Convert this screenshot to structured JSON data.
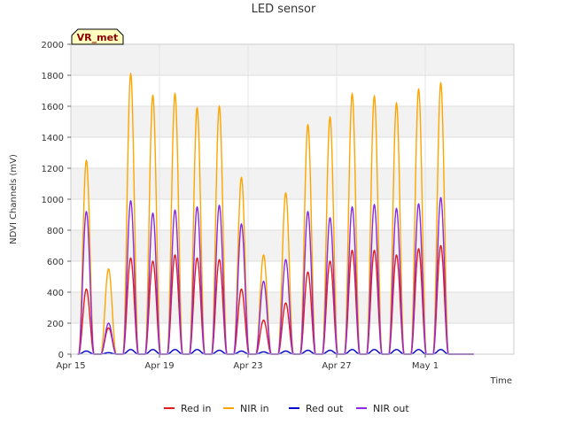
{
  "chart_data": {
    "type": "line",
    "title": "LED sensor",
    "xlabel": "Time",
    "ylabel": "NDVI Channels (mV)",
    "badge": "VR_met",
    "ylim": [
      0,
      2000
    ],
    "xlim_days": [
      15,
      35
    ],
    "yticks": [
      0,
      200,
      400,
      600,
      800,
      1000,
      1200,
      1400,
      1600,
      1800,
      2000
    ],
    "xticks": [
      {
        "day": 15,
        "label": "Apr 15"
      },
      {
        "day": 19,
        "label": "Apr 19"
      },
      {
        "day": 23,
        "label": "Apr 23"
      },
      {
        "day": 27,
        "label": "Apr 27"
      },
      {
        "day": 31,
        "label": "May 1"
      }
    ],
    "legend": "bottom-center",
    "grid": true,
    "days": [
      15.7,
      16.7,
      17.7,
      18.7,
      19.7,
      20.7,
      21.7,
      22.7,
      23.7,
      24.7,
      25.7,
      26.7,
      27.7,
      28.7,
      29.7,
      30.7,
      31.7,
      32.7
    ],
    "series": [
      {
        "name": "Red in",
        "color": "#e41a1c",
        "daily_peaks": [
          420,
          170,
          620,
          600,
          640,
          620,
          610,
          420,
          220,
          330,
          530,
          600,
          670,
          670,
          640,
          680,
          700,
          0
        ]
      },
      {
        "name": "NIR in",
        "color": "#ffa500",
        "daily_peaks": [
          1250,
          550,
          1810,
          1670,
          1680,
          1590,
          1600,
          1140,
          640,
          1040,
          1480,
          1530,
          1680,
          1665,
          1620,
          1710,
          1750,
          0
        ]
      },
      {
        "name": "Red out",
        "color": "#0000cd",
        "daily_peaks": [
          20,
          10,
          30,
          30,
          30,
          30,
          25,
          20,
          15,
          20,
          25,
          25,
          30,
          30,
          30,
          30,
          30,
          0
        ]
      },
      {
        "name": "NIR out",
        "color": "#8a2be2",
        "daily_peaks": [
          920,
          200,
          990,
          910,
          930,
          950,
          960,
          840,
          470,
          610,
          920,
          880,
          950,
          965,
          940,
          970,
          1010,
          0
        ]
      }
    ]
  }
}
